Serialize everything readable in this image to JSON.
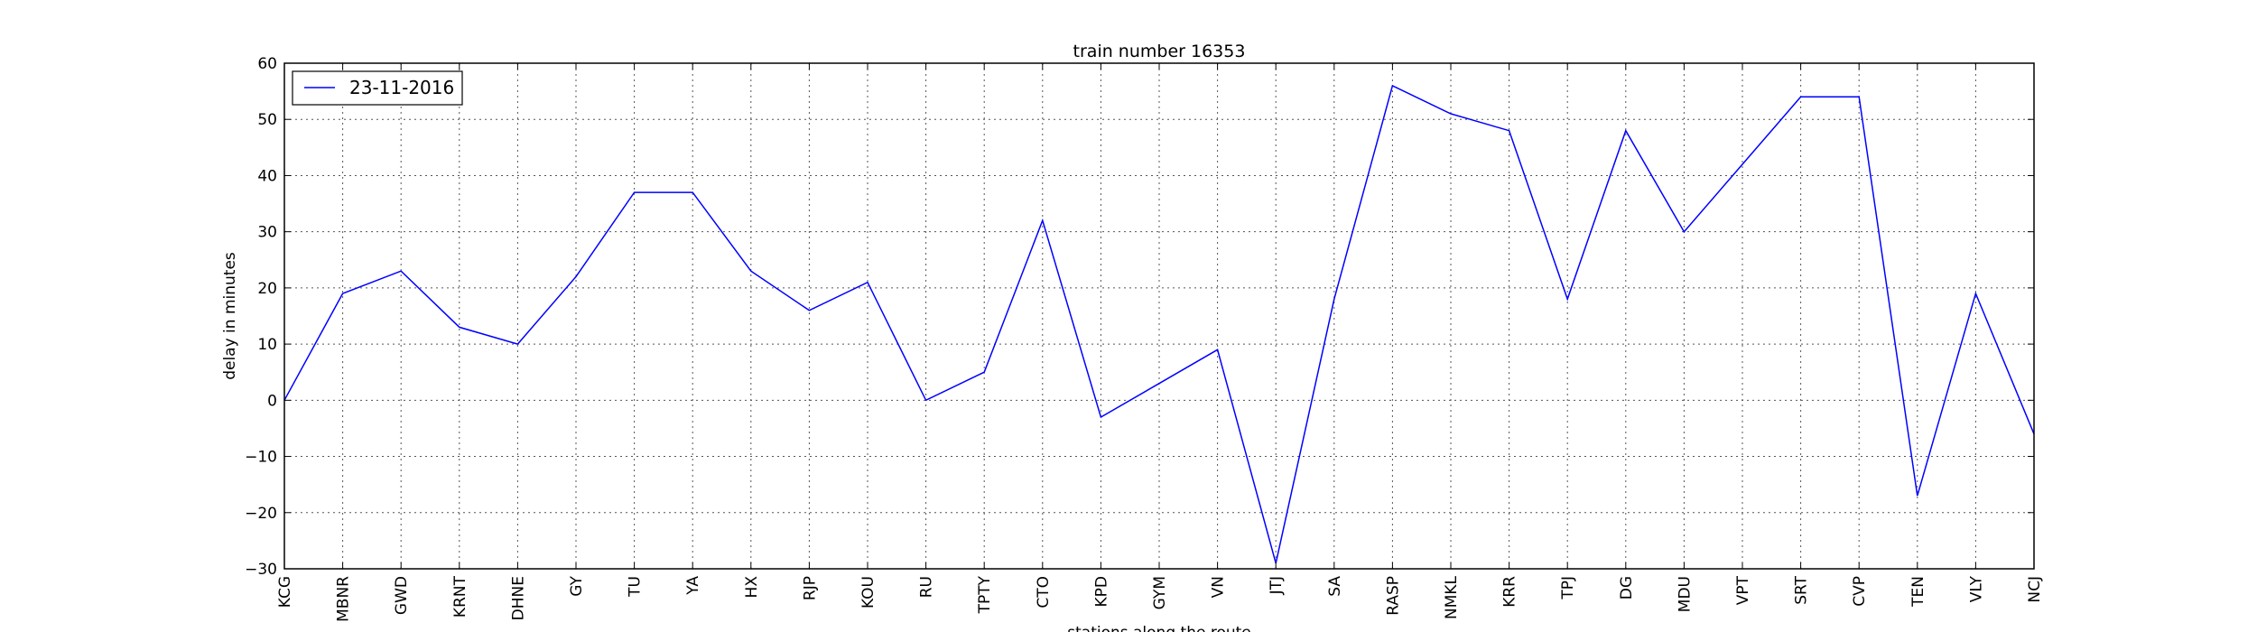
{
  "chart_data": {
    "type": "line",
    "title": "train number 16353",
    "xlabel": "stations along the route",
    "ylabel": "delay in minutes",
    "ylim": [
      -30,
      60
    ],
    "yticks": [
      -30,
      -20,
      -10,
      0,
      10,
      20,
      30,
      40,
      50,
      60
    ],
    "grid": true,
    "legend_position": "top-left",
    "categories": [
      "KCG",
      "MBNR",
      "GWD",
      "KRNT",
      "DHNE",
      "GY",
      "TU",
      "YA",
      "HX",
      "RJP",
      "KOU",
      "RU",
      "TPTY",
      "CTO",
      "KPD",
      "GYM",
      "VN",
      "JTJ",
      "SA",
      "RASP",
      "NMKL",
      "KRR",
      "TPJ",
      "DG",
      "MDU",
      "VPT",
      "SRT",
      "CVP",
      "TEN",
      "VLY",
      "NCJ"
    ],
    "series": [
      {
        "name": "23-11-2016",
        "color": "#0000ff",
        "values": [
          0,
          19,
          23,
          13,
          10,
          22,
          37,
          37,
          23,
          16,
          21,
          0,
          5,
          32,
          -3,
          3,
          9,
          -29,
          18,
          56,
          51,
          48,
          18,
          48,
          30,
          42,
          54,
          54,
          -17,
          19,
          -6
        ]
      }
    ]
  }
}
